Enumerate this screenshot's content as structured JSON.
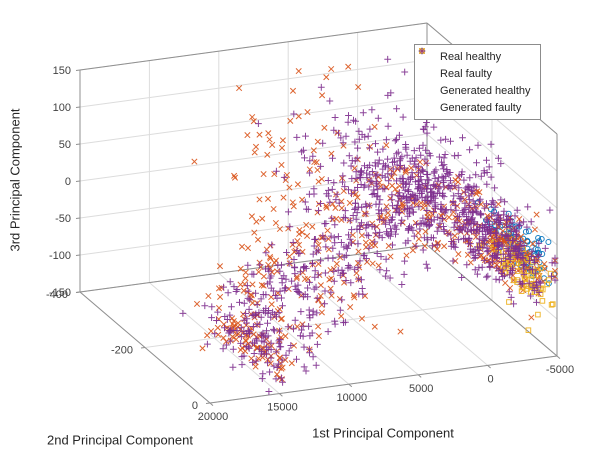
{
  "chart_data": {
    "type": "scatter3d",
    "title": "",
    "xlabel": "1st Principal Component",
    "ylabel": "2nd Principal Component",
    "zlabel": "3rd Principal Component",
    "xticks": [
      20000,
      15000,
      10000,
      5000,
      0,
      -5000
    ],
    "yticks": [
      -400,
      -200,
      0
    ],
    "zticks": [
      -150,
      -100,
      -50,
      0,
      50,
      100,
      150
    ],
    "xlim": [
      20000,
      -5000
    ],
    "ylim": [
      0,
      -400
    ],
    "zlim": [
      -150,
      150
    ],
    "grid": true,
    "view": "MATLAB default 3-D view (az -37.5, el 30), x axis decreasing to the right",
    "colors": {
      "real_healthy": "#0072BD",
      "real_faulty": "#D95319",
      "generated_healthy": "#EDB120",
      "generated_faulty": "#7E2F8E",
      "grid": "#dcdcdc",
      "box": "#8f8f8f",
      "tick_label": "#424242"
    },
    "legend": {
      "position": "top-right",
      "entries": [
        {
          "label": "Real healthy",
          "marker": "circle",
          "color": "#0072BD"
        },
        {
          "label": "Real faulty",
          "marker": "x",
          "color": "#D95319"
        },
        {
          "label": "Generated healthy",
          "marker": "square",
          "color": "#EDB120"
        },
        {
          "label": "Generated faulty",
          "marker": "plus",
          "color": "#7E2F8E"
        }
      ]
    },
    "points_note": "Dense point clouds (~1800 markers) estimated from pixels; encoded as a shared curved band plus gaussian clusters in data coordinates, expanded by a seeded generator.",
    "band_controls": [
      [
        15000,
        -130,
        -125
      ],
      [
        12000,
        -165,
        -108
      ],
      [
        9000,
        -195,
        -88
      ],
      [
        6000,
        -215,
        -72
      ],
      [
        3000,
        -215,
        -30
      ],
      [
        1000,
        -200,
        8
      ],
      [
        -1000,
        -170,
        -12
      ],
      [
        -3000,
        -120,
        -28
      ],
      [
        -4500,
        -90,
        -38
      ]
    ],
    "series": [
      {
        "name": "Real healthy",
        "marker": "circle",
        "color": "#0072BD",
        "clusters": [
          {
            "center": [
              -4300,
              -80,
              -30
            ],
            "spread": [
              500,
              40,
              16
            ],
            "count": 90
          }
        ]
      },
      {
        "name": "Real faulty",
        "marker": "x",
        "color": "#D95319",
        "band": {
          "count": 330,
          "noise": [
            900,
            60,
            25
          ]
        },
        "clusters": [
          {
            "center": [
              7000,
              -285,
              10
            ],
            "spread": [
              2500,
              60,
              60
            ],
            "count": 95
          },
          {
            "center": [
              -3800,
              -90,
              -40
            ],
            "spread": [
              800,
              50,
              25
            ],
            "count": 80
          },
          {
            "center": [
              14000,
              -130,
              -132
            ],
            "spread": [
              1000,
              50,
              12
            ],
            "count": 60
          }
        ]
      },
      {
        "name": "Generated healthy",
        "marker": "square",
        "color": "#EDB120",
        "clusters": [
          {
            "center": [
              -4300,
              -70,
              -57
            ],
            "spread": [
              600,
              45,
              16
            ],
            "count": 70
          },
          {
            "center": [
              -3300,
              -40,
              -100
            ],
            "spread": [
              400,
              40,
              8
            ],
            "count": 3
          }
        ]
      },
      {
        "name": "Generated faulty",
        "marker": "plus",
        "color": "#7E2F8E",
        "band": {
          "count": 500,
          "noise": [
            800,
            55,
            20
          ]
        },
        "clusters": [
          {
            "center": [
              1500,
              -230,
              15
            ],
            "spread": [
              3000,
              80,
              45
            ],
            "count": 280
          },
          {
            "center": [
              -1500,
              -180,
              10
            ],
            "spread": [
              1200,
              60,
              35
            ],
            "count": 100
          },
          {
            "center": [
              -3800,
              -100,
              -35
            ],
            "spread": [
              900,
              60,
              30
            ],
            "count": 130
          },
          {
            "center": [
              13500,
              -120,
              -135
            ],
            "spread": [
              1500,
              60,
              18
            ],
            "count": 60
          }
        ]
      }
    ],
    "projection": {
      "origin": [
        210,
        403
      ],
      "x_edge": [
        347,
        -47
      ],
      "y_edge": [
        -130,
        -111
      ],
      "z_edge": [
        0,
        -222
      ]
    }
  }
}
